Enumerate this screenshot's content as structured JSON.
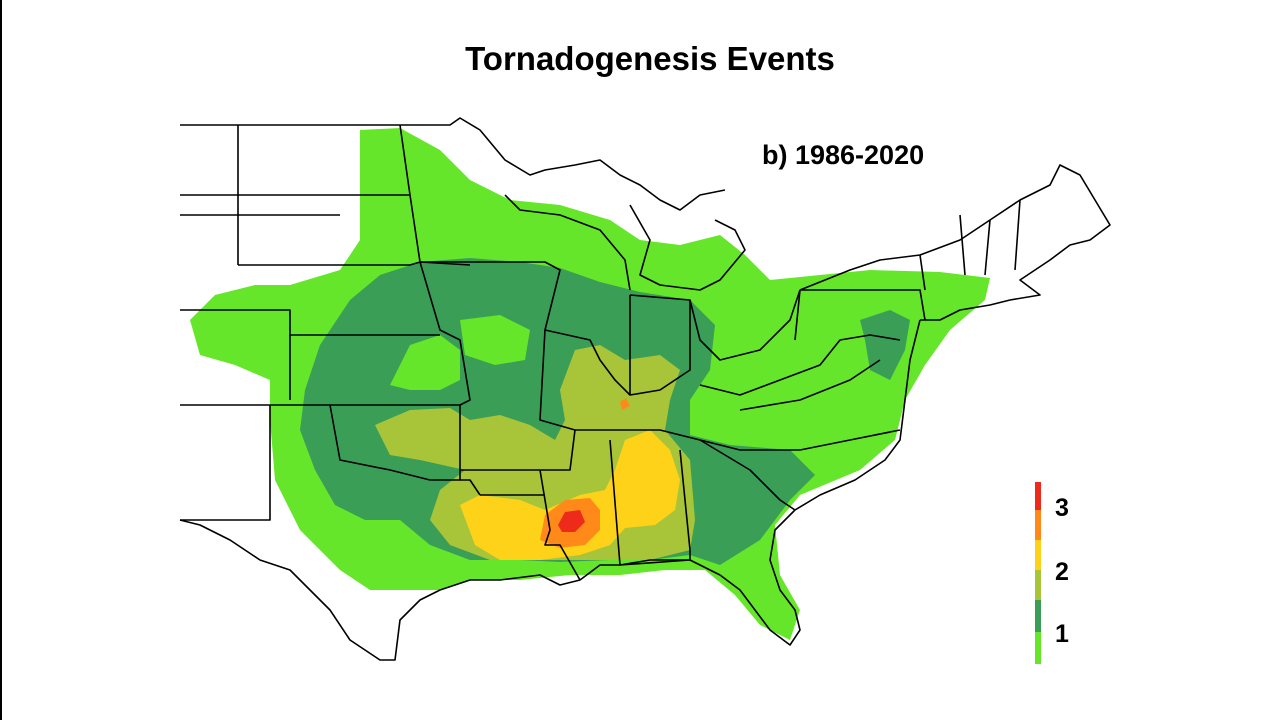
{
  "title": "Tornadogenesis Events",
  "subtitle": "b) 1986-2020",
  "legend": {
    "labels": [
      "1",
      "2",
      "3"
    ],
    "colors": [
      "#66e62a",
      "#3a9e57",
      "#a8c53a",
      "#ffd21a",
      "#ff8a1a",
      "#ee2b1a"
    ]
  },
  "colors": {
    "level_0_5": "#66e62a",
    "level_1": "#3a9e57",
    "level_1_5": "#a8c53a",
    "level_2": "#ffd21a",
    "level_2_5": "#ff8a1a",
    "level_3": "#ee2b1a",
    "boundary": "#000000",
    "background": "#ffffff"
  }
}
